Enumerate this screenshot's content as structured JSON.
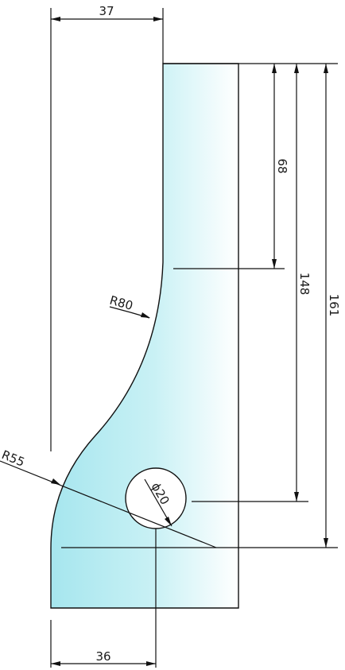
{
  "drawing": {
    "part_fill_color": "#b3e8ee",
    "dimensions": {
      "top_width": "37",
      "bottom_width": "36",
      "height_68": "68",
      "height_148": "148",
      "height_161": "161",
      "radius_80": "R80",
      "radius_55": "R55",
      "hole_diameter": "ϕ20"
    }
  }
}
